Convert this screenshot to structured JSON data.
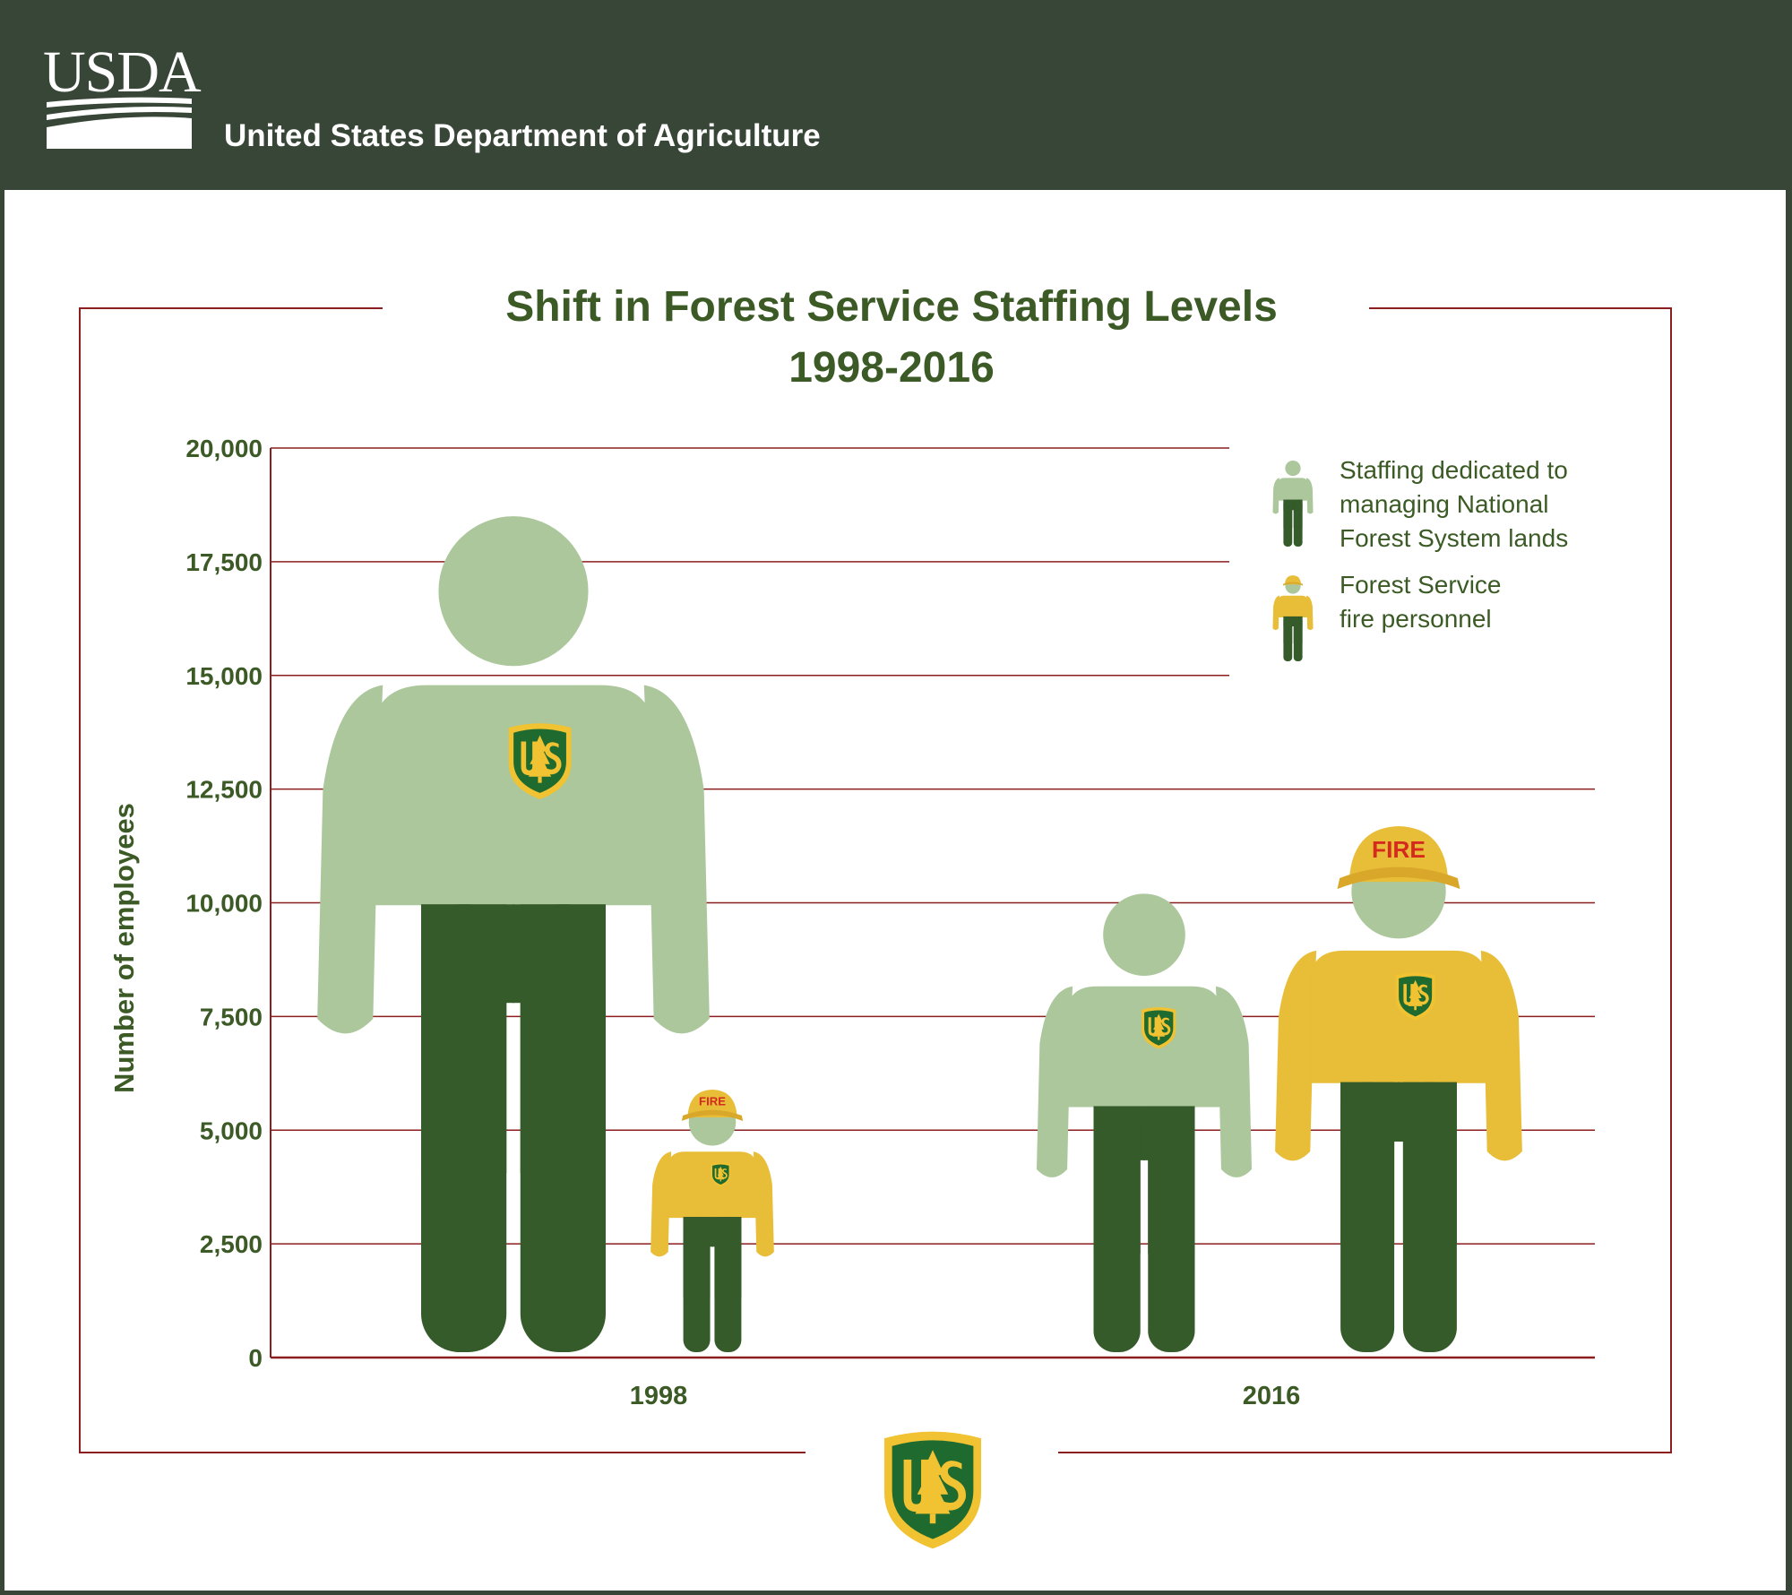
{
  "header": {
    "logo_text": "USDA",
    "agency_name": "United States Department of Agriculture"
  },
  "chart_data": {
    "type": "bar",
    "title": "Shift in Forest Service Staffing Levels",
    "subtitle": "1998-2016",
    "ylabel": "Number of employees",
    "ylim": [
      0,
      20000
    ],
    "yticks": [
      "0",
      "2,500",
      "5,000",
      "7,500",
      "10,000",
      "12,500",
      "15,000",
      "17,500",
      "20,000"
    ],
    "categories": [
      "1998",
      "2016"
    ],
    "series": [
      {
        "name": "Staffing dedicated to managing National Forest System lands",
        "values": [
          18500,
          10200
        ]
      },
      {
        "name": "Forest Service fire personnel",
        "values": [
          5900,
          11700
        ]
      }
    ],
    "hat_label": "FIRE",
    "legend": [
      {
        "lines": [
          "Staffing dedicated to",
          "managing National",
          "Forest System lands"
        ]
      },
      {
        "lines": [
          "Forest Service",
          "fire personnel"
        ]
      }
    ],
    "grid": true,
    "legend_position": "top-right"
  },
  "colors": {
    "header_bg": "#384637",
    "frame_red": "#8b1e1e",
    "title_green": "#3b5a25",
    "light_green": "#abc79b",
    "dark_green": "#365b2b",
    "fire_yellow": "#e8bd38",
    "hat_text": "#d42b1e",
    "badge_green": "#1f6a2f",
    "badge_gold": "#f1c232"
  },
  "icons": {
    "agency_logo": "forest-service-shield-icon",
    "lands_staff": "staff-person-icon",
    "fire_staff": "firefighter-person-icon"
  }
}
